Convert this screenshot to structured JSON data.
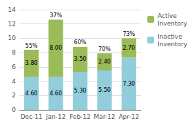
{
  "chart_data": {
    "type": "bar",
    "stacked": true,
    "categories": [
      "Dec-11",
      "Jan-12",
      "Feb-12",
      "Mar-12",
      "Apr-12"
    ],
    "series": [
      {
        "name": "Inactive\nInventory",
        "color": "#92CDDC",
        "values": [
          4.6,
          4.6,
          5.3,
          5.5,
          7.3
        ],
        "value_labels": [
          "4.60",
          "4.60",
          "5.30",
          "5.50",
          "7.30"
        ]
      },
      {
        "name": "Active\nInventory",
        "color": "#9BBB59",
        "values": [
          3.8,
          8.0,
          3.5,
          2.4,
          2.7
        ],
        "value_labels": [
          "3.80",
          "8.00",
          "3.50",
          "2.40",
          "2.70"
        ]
      }
    ],
    "annotations": [
      {
        "x": "Dec-11",
        "text": "55%"
      },
      {
        "x": "Jan-12",
        "text": "37%"
      },
      {
        "x": "Feb-12",
        "text": "60%"
      },
      {
        "x": "Mar-12",
        "text": "70%"
      },
      {
        "x": "Apr-12",
        "text": "73%"
      }
    ],
    "ylim": [
      0,
      14
    ],
    "yticks": [
      0,
      2,
      4,
      6,
      8,
      10,
      12,
      14
    ],
    "grid": true,
    "data_labels": true,
    "legend": "right"
  }
}
